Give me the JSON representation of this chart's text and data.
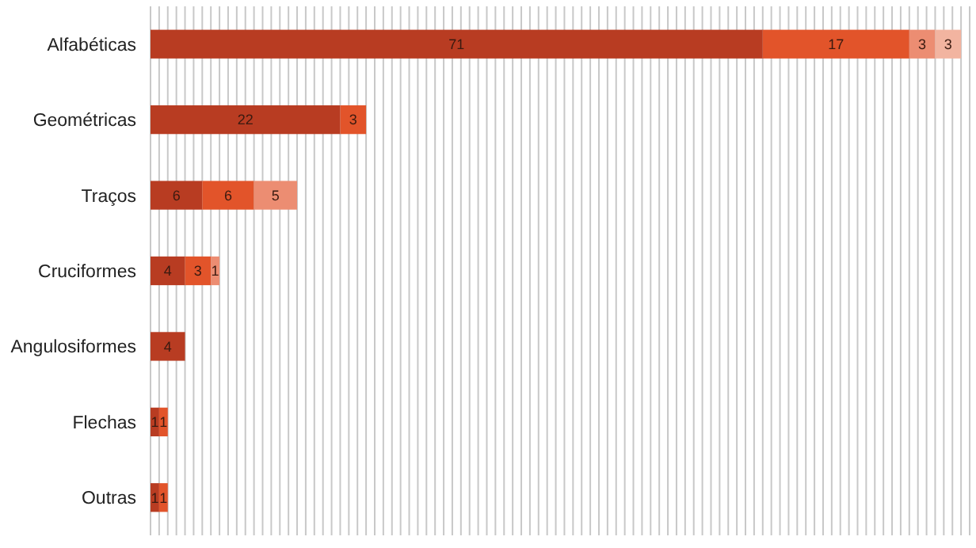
{
  "chart_data": {
    "type": "bar",
    "orientation": "horizontal",
    "stacked": true,
    "data_labels": true,
    "grid": "x",
    "tick_labels": "y",
    "categories": [
      "Alfabéticas",
      "Geométricas",
      "Traços",
      "Cruciformes",
      "Angulosiformes",
      "Flechas",
      "Outras"
    ],
    "xlim": [
      0,
      95
    ],
    "xticks": [
      {
        "value": 0,
        "label": null
      },
      {
        "value": 1,
        "label": null
      },
      {
        "value": 2,
        "label": null
      },
      {
        "value": 3,
        "label": null
      },
      {
        "value": 4,
        "label": null
      },
      {
        "value": 5,
        "label": null
      },
      {
        "value": 6,
        "label": null
      },
      {
        "value": 7,
        "label": null
      },
      {
        "value": 8,
        "label": null
      },
      {
        "value": 9,
        "label": null
      },
      {
        "value": 10,
        "label": null
      },
      {
        "value": 11,
        "label": null
      },
      {
        "value": 12,
        "label": null
      },
      {
        "value": 13,
        "label": null
      },
      {
        "value": 14,
        "label": null
      },
      {
        "value": 15,
        "label": null
      },
      {
        "value": 16,
        "label": null
      },
      {
        "value": 17,
        "label": null
      },
      {
        "value": 18,
        "label": null
      },
      {
        "value": 19,
        "label": null
      },
      {
        "value": 20,
        "label": null
      },
      {
        "value": 21,
        "label": null
      },
      {
        "value": 22,
        "label": null
      },
      {
        "value": 23,
        "label": null
      },
      {
        "value": 24,
        "label": null
      },
      {
        "value": 25,
        "label": null
      },
      {
        "value": 26,
        "label": null
      },
      {
        "value": 27,
        "label": null
      },
      {
        "value": 28,
        "label": null
      },
      {
        "value": 29,
        "label": null
      },
      {
        "value": 30,
        "label": null
      },
      {
        "value": 31,
        "label": null
      },
      {
        "value": 32,
        "label": null
      },
      {
        "value": 33,
        "label": null
      },
      {
        "value": 34,
        "label": null
      },
      {
        "value": 35,
        "label": null
      },
      {
        "value": 36,
        "label": null
      },
      {
        "value": 37,
        "label": null
      },
      {
        "value": 38,
        "label": null
      },
      {
        "value": 39,
        "label": null
      },
      {
        "value": 40,
        "label": null
      },
      {
        "value": 41,
        "label": null
      },
      {
        "value": 42,
        "label": null
      },
      {
        "value": 43,
        "label": null
      },
      {
        "value": 44,
        "label": null
      },
      {
        "value": 45,
        "label": null
      },
      {
        "value": 46,
        "label": null
      },
      {
        "value": 47,
        "label": null
      },
      {
        "value": 48,
        "label": null
      },
      {
        "value": 49,
        "label": null
      },
      {
        "value": 50,
        "label": null
      },
      {
        "value": 51,
        "label": null
      },
      {
        "value": 52,
        "label": null
      },
      {
        "value": 53,
        "label": null
      },
      {
        "value": 54,
        "label": null
      },
      {
        "value": 55,
        "label": null
      },
      {
        "value": 56,
        "label": null
      },
      {
        "value": 57,
        "label": null
      },
      {
        "value": 58,
        "label": null
      },
      {
        "value": 59,
        "label": null
      },
      {
        "value": 60,
        "label": null
      },
      {
        "value": 61,
        "label": null
      },
      {
        "value": 62,
        "label": null
      },
      {
        "value": 63,
        "label": null
      },
      {
        "value": 64,
        "label": null
      },
      {
        "value": 65,
        "label": null
      },
      {
        "value": 66,
        "label": null
      },
      {
        "value": 67,
        "label": null
      },
      {
        "value": 68,
        "label": null
      },
      {
        "value": 69,
        "label": null
      },
      {
        "value": 70,
        "label": null
      },
      {
        "value": 71,
        "label": null
      },
      {
        "value": 72,
        "label": null
      },
      {
        "value": 73,
        "label": null
      },
      {
        "value": 74,
        "label": null
      },
      {
        "value": 75,
        "label": null
      },
      {
        "value": 76,
        "label": null
      },
      {
        "value": 77,
        "label": null
      },
      {
        "value": 78,
        "label": null
      },
      {
        "value": 79,
        "label": null
      },
      {
        "value": 80,
        "label": null
      },
      {
        "value": 81,
        "label": null
      },
      {
        "value": 82,
        "label": null
      },
      {
        "value": 83,
        "label": null
      },
      {
        "value": 84,
        "label": null
      },
      {
        "value": 85,
        "label": null
      },
      {
        "value": 86,
        "label": null
      },
      {
        "value": 87,
        "label": null
      },
      {
        "value": 88,
        "label": null
      },
      {
        "value": 89,
        "label": null
      },
      {
        "value": 90,
        "label": null
      },
      {
        "value": 91,
        "label": null
      },
      {
        "value": 92,
        "label": null
      },
      {
        "value": 93,
        "label": null
      },
      {
        "value": 94,
        "label": null
      },
      {
        "value": 95,
        "label": null
      }
    ],
    "series": [
      {
        "color": "#b83c22",
        "values": [
          71,
          22,
          6,
          4,
          4,
          1,
          1
        ]
      },
      {
        "color": "#e2542a",
        "values": [
          17,
          3,
          6,
          3,
          null,
          1,
          1
        ]
      },
      {
        "color": "#ec8d72",
        "values": [
          3,
          null,
          5,
          1,
          null,
          null,
          null
        ]
      },
      {
        "color": "#f2b4a0",
        "values": [
          3,
          null,
          null,
          null,
          null,
          null,
          null
        ]
      }
    ]
  }
}
